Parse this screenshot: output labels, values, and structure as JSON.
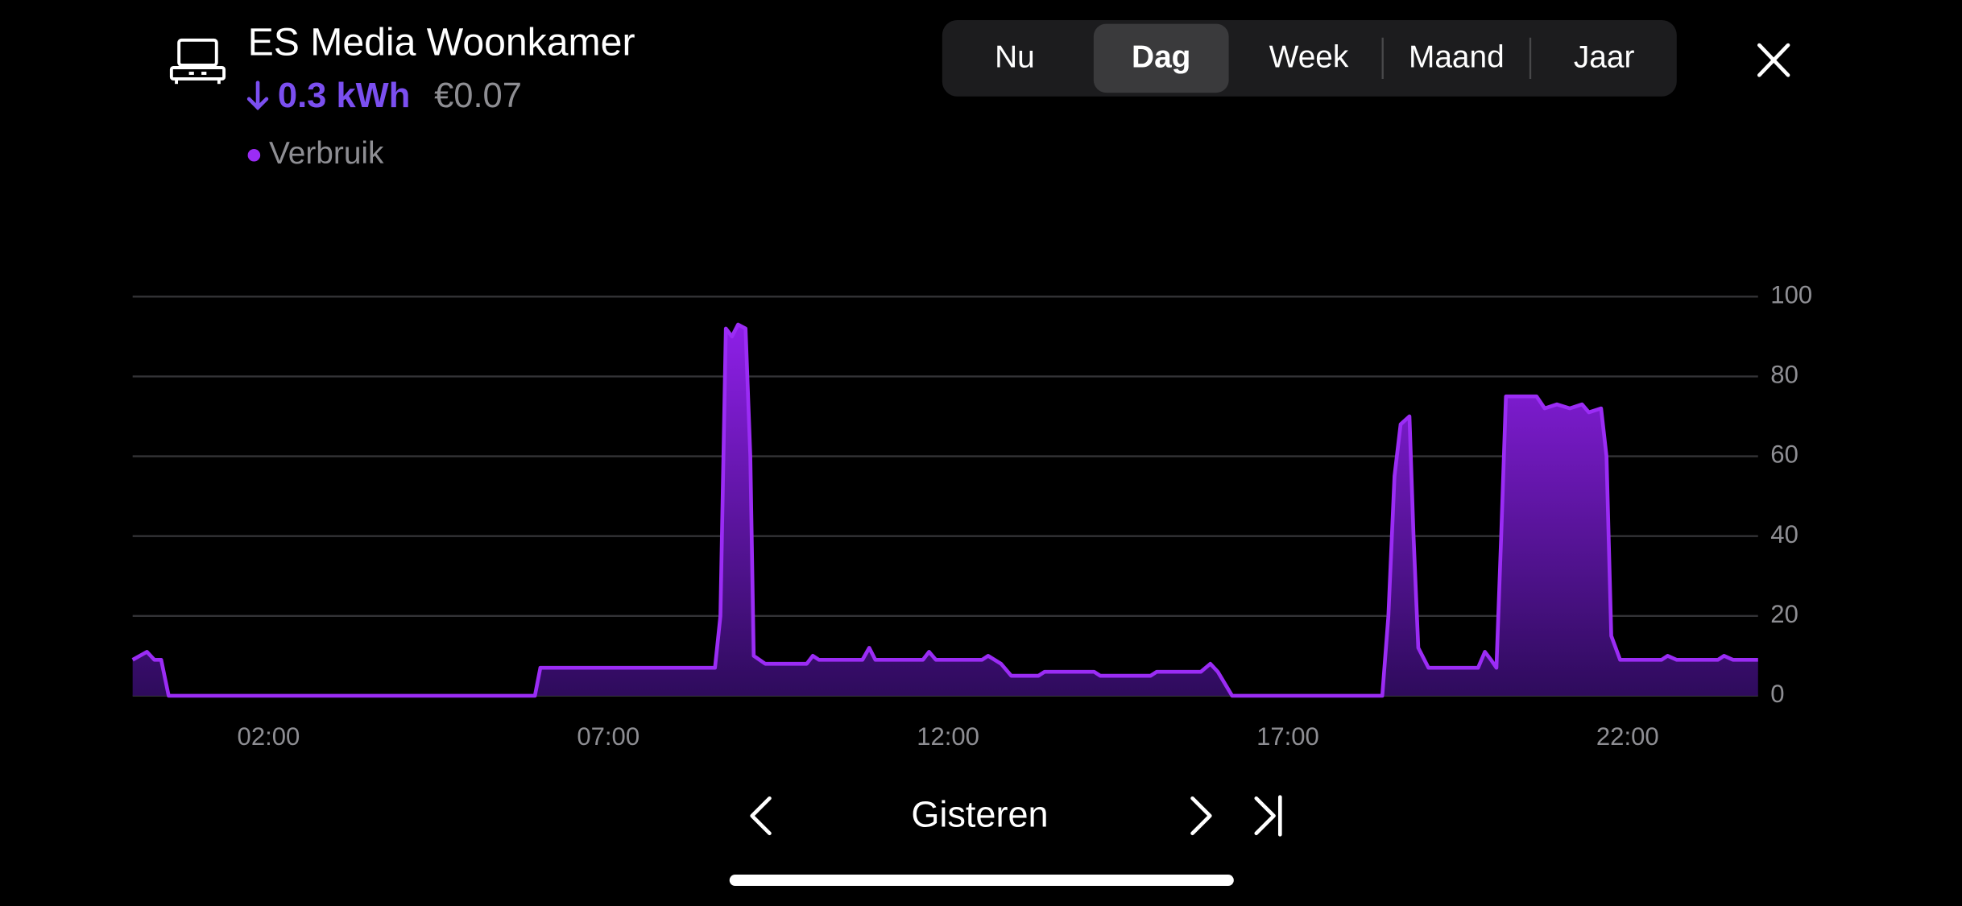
{
  "header": {
    "title": "ES Media Woonkamer",
    "energy": "0.3 kWh",
    "cost": "€0.07"
  },
  "tabs": {
    "items": [
      "Nu",
      "Dag",
      "Week",
      "Maand",
      "Jaar"
    ],
    "selected_index": 1
  },
  "nav": {
    "label": "Gisteren"
  },
  "chart_data": {
    "type": "area",
    "x": [
      0,
      0.21,
      0.32,
      0.42,
      0.53,
      5.92,
      6.0,
      8.57,
      8.65,
      8.73,
      8.82,
      8.91,
      9.02,
      9.09,
      9.14,
      9.31,
      9.92,
      10.01,
      10.1,
      10.74,
      10.84,
      10.93,
      11.63,
      11.72,
      11.82,
      12.5,
      12.59,
      12.78,
      12.93,
      13.33,
      13.42,
      14.15,
      14.24,
      14.98,
      15.07,
      15.72,
      15.86,
      15.97,
      16.18,
      18.39,
      18.48,
      18.57,
      18.66,
      18.79,
      18.85,
      18.92,
      19.07,
      19.8,
      19.9,
      19.99,
      20.07,
      20.14,
      20.21,
      20.66,
      20.78,
      20.96,
      21.15,
      21.33,
      21.43,
      21.61,
      21.69,
      21.76,
      21.89,
      22.5,
      22.59,
      22.72,
      23.33,
      23.42,
      23.55,
      23.92
    ],
    "series": [
      {
        "name": "Verbruik",
        "color": "#9b2cf5",
        "values": [
          9,
          11,
          9,
          9,
          0,
          0,
          7,
          7,
          20,
          92,
          90,
          93,
          92,
          60,
          10,
          8,
          8,
          10,
          9,
          9,
          12,
          9,
          9,
          11,
          9,
          9,
          10,
          8,
          5,
          5,
          6,
          6,
          5,
          5,
          6,
          6,
          8,
          6,
          0,
          0,
          20,
          55,
          68,
          70,
          40,
          12,
          7,
          7,
          11,
          9,
          7,
          40,
          75,
          75,
          72,
          73,
          72,
          73,
          71,
          72,
          60,
          15,
          9,
          9,
          10,
          9,
          9,
          10,
          9,
          9
        ]
      }
    ],
    "xlim": [
      0,
      23.92
    ],
    "xticks": [
      {
        "value": 2,
        "label": "02:00"
      },
      {
        "value": 7,
        "label": "07:00"
      },
      {
        "value": 12,
        "label": "12:00"
      },
      {
        "value": 17,
        "label": "17:00"
      },
      {
        "value": 22,
        "label": "22:00"
      }
    ],
    "ylim": [
      0,
      100
    ],
    "yticks": [
      0,
      20,
      40,
      60,
      80,
      100
    ],
    "grid": true
  }
}
